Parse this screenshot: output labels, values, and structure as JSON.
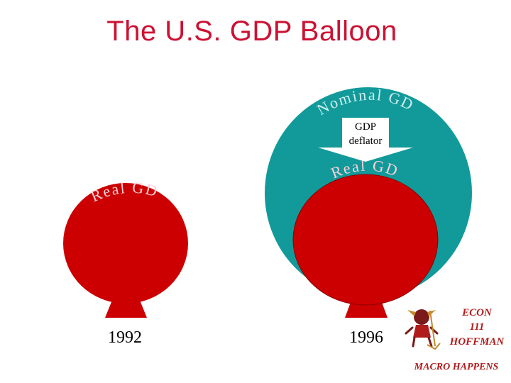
{
  "title": "The U.S. GDP Balloon",
  "balloon_1992": {
    "label": "Real GDP",
    "year": "1992"
  },
  "balloon_1996": {
    "outer_label": "Nominal GDP",
    "inner_label": "Real GDP",
    "year": "1996"
  },
  "deflator": {
    "line1": "GDP",
    "line2": "deflator"
  },
  "badge": {
    "line1": "ECON",
    "line2": "111",
    "line3": "HOFFMAN",
    "footer": "MACRO HAPPENS"
  },
  "colors": {
    "title": "#cc1133",
    "real": "#cc0000",
    "nominal": "#129a9a",
    "badge": "#b01c1c"
  }
}
